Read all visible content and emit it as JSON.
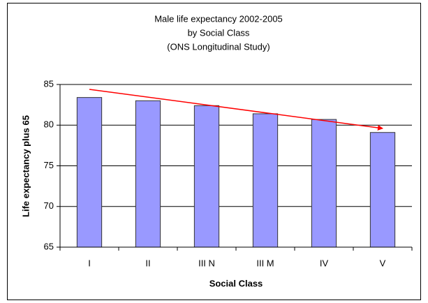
{
  "chart_data": {
    "type": "bar",
    "title": [
      "Male life expectancy 2002-2005",
      "by Social Class",
      "(ONS Longitudinal Study)"
    ],
    "x_label": "Social Class",
    "y_label": "Life expectancy plus 65",
    "categories": [
      "I",
      "II",
      "III N",
      "III M",
      "IV",
      "V"
    ],
    "values": [
      83.4,
      83.0,
      82.4,
      81.4,
      80.7,
      79.1
    ],
    "color": "#9999ff",
    "ylim": [
      65,
      85
    ],
    "yticks": [
      65,
      70,
      75,
      80,
      85
    ],
    "grid": true,
    "trend": {
      "start": 84.4,
      "end": 79.6,
      "color": "#ff0000"
    }
  }
}
